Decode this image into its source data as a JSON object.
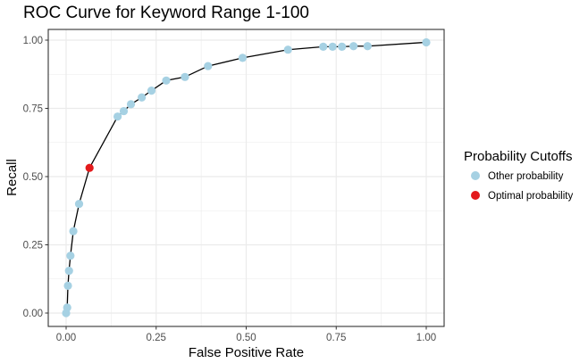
{
  "chart_data": {
    "type": "scatter",
    "title": "ROC Curve for Keyword Range 1-100",
    "xlabel": "False Positive Rate",
    "ylabel": "Recall",
    "xlim": [
      0,
      1
    ],
    "ylim": [
      0,
      1
    ],
    "x_ticks": [
      "0.00",
      "0.25",
      "0.50",
      "0.75",
      "1.00"
    ],
    "y_ticks": [
      "0.00",
      "0.25",
      "0.50",
      "0.75",
      "1.00"
    ],
    "grid": true,
    "legend": {
      "title": "Probability Cutoffs",
      "position": "right",
      "entries": [
        {
          "label": "Other probability",
          "color": "#a6d1e3"
        },
        {
          "label": "Optimal probability",
          "color": "#e31a1c"
        }
      ]
    },
    "series": [
      {
        "name": "Other probability",
        "color": "#a6d1e3",
        "x": [
          0.0,
          0.003,
          0.005,
          0.008,
          0.012,
          0.02,
          0.036,
          0.143,
          0.16,
          0.18,
          0.21,
          0.237,
          0.278,
          0.33,
          0.394,
          0.49,
          0.616,
          0.714,
          0.74,
          0.766,
          0.798,
          0.837,
          1.0
        ],
        "y": [
          0.0,
          0.02,
          0.1,
          0.155,
          0.21,
          0.3,
          0.4,
          0.72,
          0.74,
          0.765,
          0.79,
          0.815,
          0.852,
          0.865,
          0.905,
          0.935,
          0.965,
          0.976,
          0.976,
          0.976,
          0.978,
          0.978,
          0.992
        ]
      },
      {
        "name": "Optimal probability",
        "color": "#e31a1c",
        "x": [
          0.065
        ],
        "y": [
          0.532
        ]
      }
    ],
    "curve": {
      "color": "#000000",
      "x": [
        0.0,
        0.003,
        0.005,
        0.008,
        0.012,
        0.02,
        0.036,
        0.065,
        0.143,
        0.16,
        0.18,
        0.21,
        0.237,
        0.278,
        0.33,
        0.394,
        0.49,
        0.616,
        0.714,
        0.74,
        0.766,
        0.798,
        0.837,
        1.0
      ],
      "y": [
        0.0,
        0.02,
        0.1,
        0.155,
        0.21,
        0.3,
        0.4,
        0.532,
        0.72,
        0.74,
        0.765,
        0.79,
        0.815,
        0.852,
        0.865,
        0.905,
        0.935,
        0.965,
        0.976,
        0.976,
        0.976,
        0.978,
        0.978,
        0.992
      ]
    }
  }
}
